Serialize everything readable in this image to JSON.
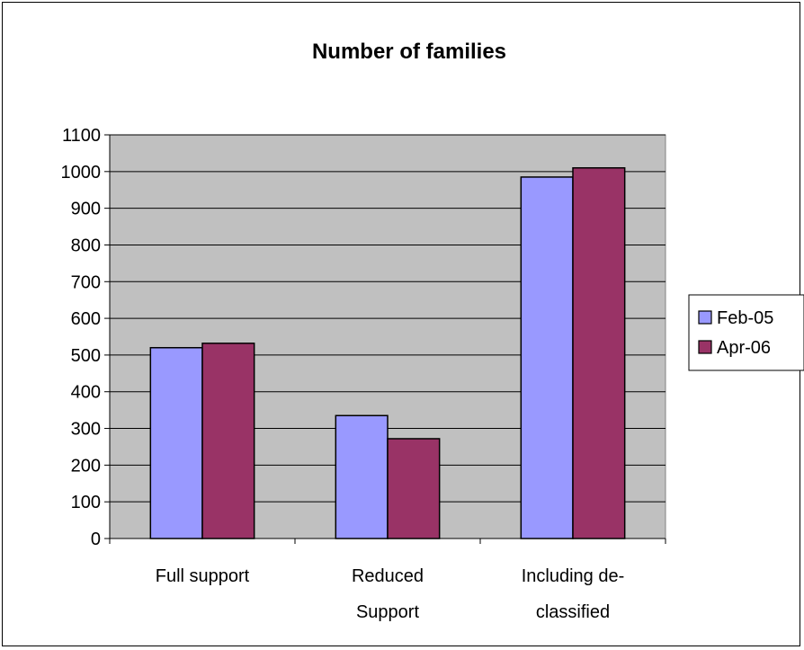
{
  "chart_data": {
    "type": "bar",
    "title": "Number of families",
    "categories": [
      [
        "Full support"
      ],
      [
        "Reduced",
        "Support"
      ],
      [
        "Including de-",
        "classified"
      ]
    ],
    "series": [
      {
        "name": "Feb-05",
        "color": "#9999FF",
        "values": [
          520,
          335,
          985
        ]
      },
      {
        "name": "Apr-06",
        "color": "#993366",
        "values": [
          532,
          272,
          1010
        ]
      }
    ],
    "yticks": [
      "0",
      "100",
      "200",
      "300",
      "400",
      "500",
      "600",
      "700",
      "800",
      "900",
      "1000",
      "1100"
    ],
    "ylim": [
      0,
      1100
    ],
    "plot_background": "#C0C0C0",
    "grid": true,
    "legend_position": "right"
  }
}
